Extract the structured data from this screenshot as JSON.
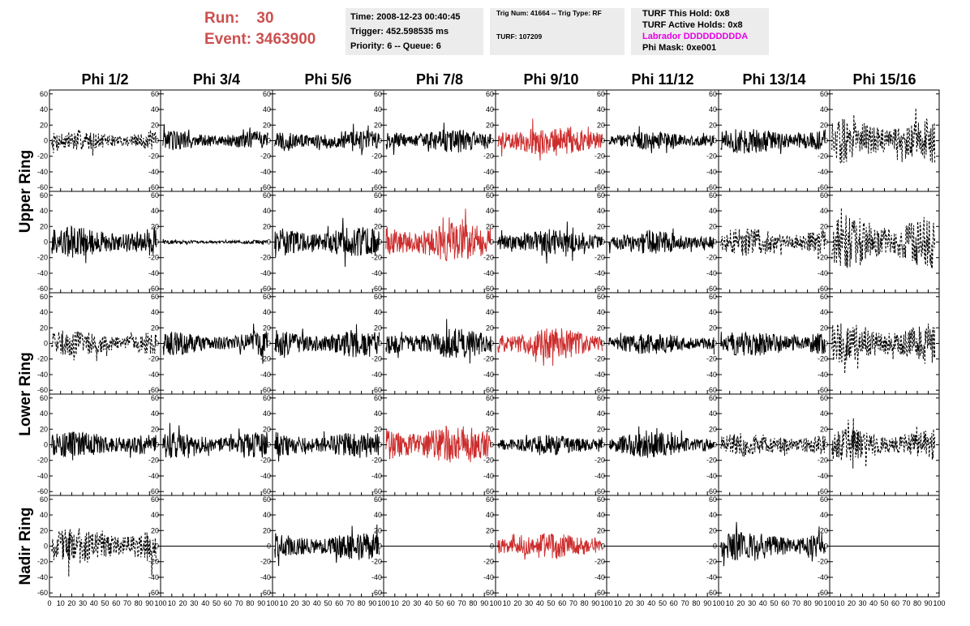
{
  "header": {
    "run_label": "Run:",
    "run_value": "30",
    "event_label": "Event:",
    "event_value": "3463900",
    "time": "Time: 2008-12-23 00:40:45",
    "trigger": "Trigger: 452.598535 ms",
    "priority": "Priority: 6 -- Queue: 6",
    "trig_num": "Trig Num: 41664 -- Trig Type: RF",
    "turf": "TURF: 107209",
    "turf_this_hold": "TURF This Hold: 0x8",
    "turf_active_holds": "TURF Active Holds: 0x8",
    "labrador": "Labrador DDDDDDDDDA",
    "phi_mask": "Phi Mask: 0xe001"
  },
  "chart_data": {
    "type": "line",
    "columns": [
      "Phi 1/2",
      "Phi 3/4",
      "Phi 5/6",
      "Phi 7/8",
      "Phi 9/10",
      "Phi 11/12",
      "Phi 13/14",
      "Phi 15/16"
    ],
    "rows": [
      "Upper Ring",
      "Upper Ring",
      "Lower Ring",
      "Lower Ring",
      "Nadir Ring"
    ],
    "row_labels": [
      {
        "text": "Upper Ring",
        "rows": [
          0,
          1
        ]
      },
      {
        "text": "Lower Ring",
        "rows": [
          2,
          3
        ]
      },
      {
        "text": "Nadir Ring",
        "rows": [
          4
        ]
      }
    ],
    "ylim": [
      -65,
      65
    ],
    "xlim": [
      0,
      100
    ],
    "y_ticks": [
      -60,
      -40,
      -20,
      0,
      20,
      40,
      60
    ],
    "y_tick_labels": [
      "-60",
      "-40",
      "-20",
      "0",
      "20",
      "40",
      "60"
    ],
    "x_tick_labels": [
      [
        "0",
        "10",
        "20",
        "30",
        "40",
        "50",
        "60",
        "70",
        "80",
        "90",
        "100"
      ],
      [
        "10",
        "20",
        "30",
        "40",
        "50",
        "60",
        "70",
        "80",
        "90",
        "100"
      ],
      [
        "10",
        "20",
        "30",
        "40",
        "50",
        "60",
        "70",
        "80",
        "90",
        "100"
      ],
      [
        "10",
        "20",
        "30",
        "40",
        "50",
        "60",
        "70",
        "80",
        "90",
        "100"
      ],
      [
        "10",
        "20",
        "30",
        "40",
        "50",
        "60",
        "70",
        "80",
        "90",
        "100"
      ],
      [
        "10",
        "20",
        "30",
        "40",
        "50",
        "60",
        "70",
        "80",
        "90",
        "100"
      ],
      [
        "10",
        "20",
        "30",
        "40",
        "50",
        "60",
        "70",
        "80",
        "90",
        "100"
      ],
      [
        "10",
        "20",
        "30",
        "40",
        "50",
        "60",
        "70",
        "80",
        "90",
        "100"
      ]
    ],
    "colors": {
      "normal": "#000000",
      "triggered": "#cd2d2d"
    },
    "panels": [
      [
        {
          "a": 10,
          "s": "dash",
          "c": "normal"
        },
        {
          "a": 10,
          "s": "solid",
          "c": "normal"
        },
        {
          "a": 11,
          "s": "solid",
          "c": "normal"
        },
        {
          "a": 12,
          "s": "solid",
          "c": "normal"
        },
        {
          "a": 16,
          "s": "solid",
          "c": "triggered"
        },
        {
          "a": 9,
          "s": "solid",
          "c": "normal"
        },
        {
          "a": 13,
          "s": "solid",
          "c": "normal"
        },
        {
          "a": 22,
          "s": "dash",
          "c": "normal"
        }
      ],
      [
        {
          "a": 16,
          "s": "solid",
          "c": "normal"
        },
        {
          "a": 2,
          "s": "solid",
          "c": "normal"
        },
        {
          "a": 16,
          "s": "solid",
          "c": "normal"
        },
        {
          "a": 20,
          "s": "solid",
          "c": "triggered"
        },
        {
          "a": 13,
          "s": "solid",
          "c": "normal"
        },
        {
          "a": 12,
          "s": "solid",
          "c": "normal"
        },
        {
          "a": 14,
          "s": "dash",
          "c": "normal"
        },
        {
          "a": 27,
          "s": "dash",
          "c": "normal"
        }
      ],
      [
        {
          "a": 13,
          "s": "dash",
          "c": "normal"
        },
        {
          "a": 12,
          "s": "solid",
          "c": "normal"
        },
        {
          "a": 14,
          "s": "solid",
          "c": "normal"
        },
        {
          "a": 15,
          "s": "solid",
          "c": "normal"
        },
        {
          "a": 16,
          "s": "solid",
          "c": "triggered"
        },
        {
          "a": 11,
          "s": "solid",
          "c": "normal"
        },
        {
          "a": 13,
          "s": "solid",
          "c": "normal"
        },
        {
          "a": 20,
          "s": "dash",
          "c": "normal"
        }
      ],
      [
        {
          "a": 13,
          "s": "solid",
          "c": "normal"
        },
        {
          "a": 13,
          "s": "solid",
          "c": "normal"
        },
        {
          "a": 13,
          "s": "solid",
          "c": "normal"
        },
        {
          "a": 20,
          "s": "solid",
          "c": "triggered"
        },
        {
          "a": 10,
          "s": "solid",
          "c": "normal"
        },
        {
          "a": 13,
          "s": "solid",
          "c": "normal"
        },
        {
          "a": 12,
          "s": "dash",
          "c": "normal"
        },
        {
          "a": 16,
          "s": "dash",
          "c": "normal"
        }
      ],
      [
        {
          "a": 18,
          "s": "dash",
          "c": "normal"
        },
        {
          "a": 0,
          "s": "flat",
          "c": "normal"
        },
        {
          "a": 14,
          "s": "solid",
          "c": "normal"
        },
        {
          "a": 0,
          "s": "flat",
          "c": "normal"
        },
        {
          "a": 13,
          "s": "solid",
          "c": "triggered"
        },
        {
          "a": 0,
          "s": "flat",
          "c": "normal"
        },
        {
          "a": 15,
          "s": "solid",
          "c": "normal"
        },
        {
          "a": 0,
          "s": "flat",
          "c": "normal"
        }
      ]
    ]
  }
}
